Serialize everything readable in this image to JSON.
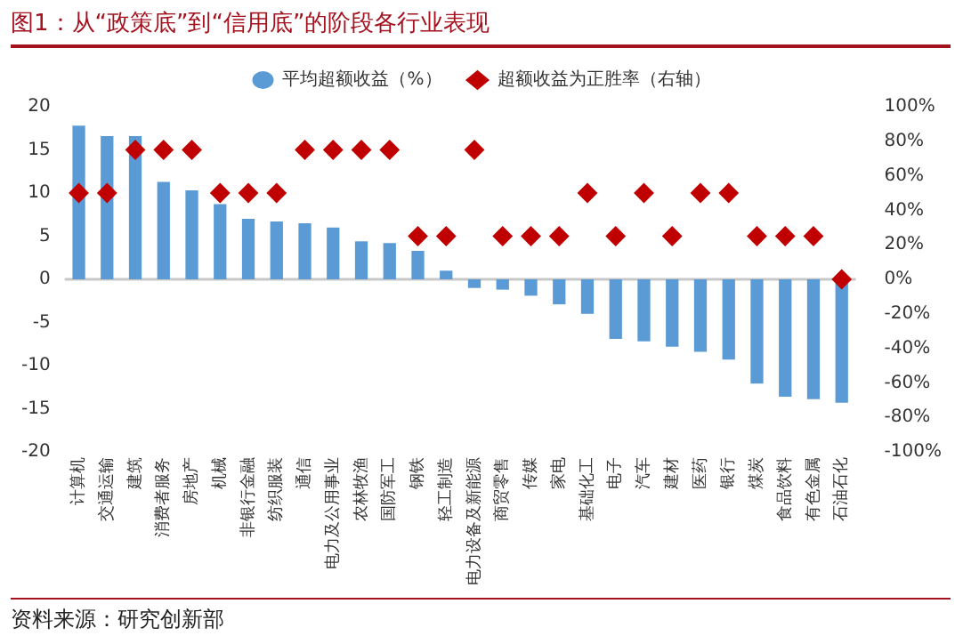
{
  "chart_data": {
    "type": "bar",
    "title": "图1：从“政策底”到“信用底”的阶段各行业表现",
    "categories": [
      "计算机",
      "交通运输",
      "建筑",
      "消费者服务",
      "房地产",
      "机械",
      "非银行金融",
      "纺织服装",
      "通信",
      "电力及公用事业",
      "农林牧渔",
      "国防军工",
      "钢铁",
      "轻工制造",
      "电力设备及新能源",
      "商贸零售",
      "传媒",
      "家电",
      "基础化工",
      "电子",
      "汽车",
      "建材",
      "医药",
      "银行",
      "煤炭",
      "食品饮料",
      "有色金属",
      "石油石化"
    ],
    "series": [
      {
        "name": "平均超额收益（%）",
        "color": "#5b9bd5",
        "values": [
          17.8,
          16.6,
          16.6,
          11.3,
          10.3,
          8.7,
          7.0,
          6.7,
          6.5,
          6.0,
          4.4,
          4.2,
          3.3,
          1.0,
          -1.0,
          -1.2,
          -1.9,
          -2.9,
          -4.0,
          -6.9,
          -7.2,
          -7.8,
          -8.4,
          -9.3,
          -12.1,
          -13.6,
          -13.9,
          -14.3
        ]
      },
      {
        "name": "超额收益为正胜率（右轴）",
        "type": "scatter",
        "axis": "y2",
        "color": "#c00000",
        "marker": "diamond",
        "values": [
          50,
          50,
          75,
          75,
          75,
          50,
          50,
          50,
          75,
          75,
          75,
          75,
          25,
          25,
          75,
          25,
          25,
          25,
          50,
          25,
          50,
          25,
          50,
          50,
          25,
          25,
          25,
          0
        ]
      }
    ],
    "ylim": [
      -20,
      20
    ],
    "yticks": [
      -20,
      -15,
      -10,
      -5,
      0,
      5,
      10,
      15,
      20
    ],
    "y2lim": [
      -100,
      100
    ],
    "y2ticks": [
      {
        "value": -100,
        "label": "-100%"
      },
      {
        "value": -80,
        "label": "-80%"
      },
      {
        "value": -60,
        "label": "-60%"
      },
      {
        "value": -40,
        "label": "-40%"
      },
      {
        "value": -20,
        "label": "-20%"
      },
      {
        "value": 0,
        "label": "0%"
      },
      {
        "value": 20,
        "label": "20%"
      },
      {
        "value": 40,
        "label": "40%"
      },
      {
        "value": 60,
        "label": "60%"
      },
      {
        "value": 80,
        "label": "80%"
      },
      {
        "value": 100,
        "label": "100%"
      }
    ],
    "legend": "top",
    "grid": false,
    "ref_lines": [
      {
        "axis": "y",
        "value": 0,
        "color": "#c8c8c8"
      }
    ],
    "annotations": [
      "资料来源：研究创新部"
    ]
  }
}
